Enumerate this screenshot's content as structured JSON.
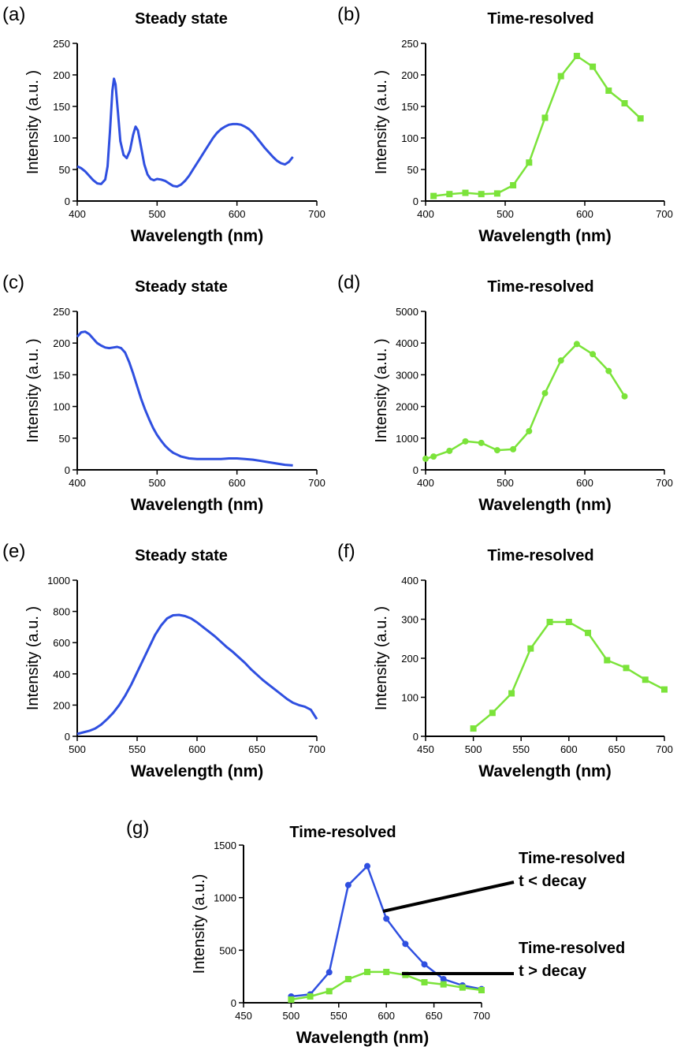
{
  "colors": {
    "blue": "#2f4fe0",
    "green": "#7be33a",
    "axis": "#000000"
  },
  "annotations": {
    "upper_line1": "Time-resolved",
    "upper_line2": "t < decay",
    "lower_line1": "Time-resolved",
    "lower_line2": "t > decay"
  },
  "chart_data": [
    {
      "panel": "(a)",
      "type": "line",
      "title": "Steady state",
      "xlabel": "Wavelength (nm)",
      "ylabel": "Intensity (a.u. )",
      "xlim": [
        400,
        700
      ],
      "ylim": [
        0,
        250
      ],
      "xticks": [
        400,
        500,
        600,
        700
      ],
      "yticks": [
        0,
        50,
        100,
        150,
        200,
        250
      ],
      "series": [
        {
          "color": "blue",
          "markers": "none",
          "x": [
            400,
            405,
            410,
            415,
            420,
            425,
            430,
            435,
            438,
            441,
            444,
            446,
            448,
            451,
            454,
            458,
            462,
            466,
            470,
            473,
            476,
            480,
            484,
            488,
            492,
            496,
            500,
            505,
            510,
            515,
            520,
            525,
            530,
            535,
            540,
            545,
            550,
            555,
            560,
            565,
            570,
            575,
            580,
            585,
            590,
            595,
            600,
            605,
            610,
            615,
            620,
            625,
            630,
            635,
            640,
            645,
            650,
            655,
            660,
            665,
            670
          ],
          "y": [
            55,
            52,
            47,
            40,
            33,
            28,
            27,
            34,
            55,
            110,
            175,
            194,
            185,
            140,
            95,
            73,
            68,
            80,
            105,
            118,
            112,
            85,
            58,
            42,
            35,
            33,
            35,
            34,
            32,
            28,
            24,
            23,
            26,
            32,
            40,
            50,
            60,
            70,
            80,
            90,
            100,
            108,
            114,
            118,
            121,
            122,
            122,
            121,
            118,
            114,
            108,
            100,
            92,
            84,
            77,
            70,
            64,
            60,
            58,
            62,
            70
          ]
        }
      ]
    },
    {
      "panel": "(b)",
      "type": "line",
      "title": "Time-resolved",
      "xlabel": "Wavelength (nm)",
      "ylabel": "Intensity (a.u. )",
      "xlim": [
        400,
        700
      ],
      "ylim": [
        0,
        250
      ],
      "xticks": [
        400,
        500,
        600,
        700
      ],
      "yticks": [
        0,
        50,
        100,
        150,
        200,
        250
      ],
      "series": [
        {
          "color": "green",
          "markers": "square",
          "x": [
            410,
            430,
            450,
            470,
            490,
            510,
            530,
            550,
            570,
            590,
            610,
            630,
            650,
            670
          ],
          "y": [
            8,
            11,
            13,
            11,
            12,
            25,
            61,
            132,
            198,
            230,
            213,
            175,
            155,
            131
          ]
        }
      ]
    },
    {
      "panel": "(c)",
      "type": "line",
      "title": "Steady state",
      "xlabel": "Wavelength (nm)",
      "ylabel": "Intensity (a.u. )",
      "xlim": [
        400,
        700
      ],
      "ylim": [
        0,
        250
      ],
      "xticks": [
        400,
        500,
        600,
        700
      ],
      "yticks": [
        0,
        50,
        100,
        150,
        200,
        250
      ],
      "series": [
        {
          "color": "blue",
          "markers": "none",
          "x": [
            400,
            405,
            410,
            415,
            420,
            425,
            430,
            435,
            440,
            445,
            450,
            455,
            460,
            465,
            470,
            475,
            480,
            485,
            490,
            495,
            500,
            505,
            510,
            515,
            520,
            525,
            530,
            540,
            550,
            560,
            570,
            580,
            590,
            600,
            610,
            620,
            630,
            640,
            650,
            660,
            670
          ],
          "y": [
            210,
            217,
            218,
            214,
            207,
            200,
            196,
            193,
            192,
            193,
            194,
            192,
            185,
            170,
            152,
            132,
            112,
            95,
            80,
            66,
            55,
            46,
            38,
            32,
            27,
            24,
            21,
            18,
            17,
            17,
            17,
            17,
            18,
            18,
            17,
            16,
            14,
            12,
            10,
            8,
            7
          ]
        }
      ]
    },
    {
      "panel": "(d)",
      "type": "line",
      "title": "Time-resolved",
      "xlabel": "Wavelength (nm)",
      "ylabel": "Intensity (a.u. )",
      "xlim": [
        400,
        700
      ],
      "ylim": [
        0,
        5000
      ],
      "xticks": [
        400,
        500,
        600,
        700
      ],
      "yticks": [
        0,
        1000,
        2000,
        3000,
        4000,
        5000
      ],
      "series": [
        {
          "color": "green",
          "markers": "circle",
          "x": [
            400,
            410,
            430,
            450,
            470,
            490,
            510,
            530,
            550,
            570,
            590,
            610,
            630,
            650
          ],
          "y": [
            350,
            420,
            600,
            900,
            850,
            620,
            650,
            1220,
            2420,
            3450,
            3970,
            3650,
            3120,
            2320
          ]
        }
      ]
    },
    {
      "panel": "(e)",
      "type": "line",
      "title": "Steady state",
      "xlabel": "Wavelength (nm)",
      "ylabel": "Intensity (a.u. )",
      "xlim": [
        500,
        700
      ],
      "ylim": [
        0,
        1000
      ],
      "xticks": [
        500,
        550,
        600,
        650,
        700
      ],
      "yticks": [
        0,
        200,
        400,
        600,
        800,
        1000
      ],
      "series": [
        {
          "color": "blue",
          "markers": "none",
          "x": [
            500,
            505,
            510,
            515,
            520,
            525,
            530,
            535,
            540,
            545,
            550,
            555,
            560,
            565,
            570,
            575,
            580,
            585,
            590,
            595,
            600,
            605,
            610,
            615,
            620,
            625,
            630,
            635,
            640,
            645,
            650,
            655,
            660,
            665,
            670,
            675,
            680,
            685,
            690,
            695,
            700
          ],
          "y": [
            15,
            25,
            35,
            50,
            75,
            110,
            150,
            200,
            260,
            330,
            410,
            490,
            570,
            650,
            710,
            755,
            775,
            778,
            770,
            755,
            730,
            700,
            670,
            640,
            605,
            570,
            540,
            505,
            470,
            430,
            395,
            360,
            330,
            300,
            270,
            240,
            215,
            200,
            190,
            170,
            110
          ]
        }
      ]
    },
    {
      "panel": "(f)",
      "type": "line",
      "title": "Time-resolved",
      "xlabel": "Wavelength (nm)",
      "ylabel": "Intensity (a.u. )",
      "xlim": [
        450,
        700
      ],
      "ylim": [
        0,
        400
      ],
      "xticks": [
        450,
        500,
        550,
        600,
        650,
        700
      ],
      "yticks": [
        0,
        100,
        200,
        300,
        400
      ],
      "series": [
        {
          "color": "green",
          "markers": "square",
          "x": [
            500,
            520,
            540,
            560,
            580,
            600,
            620,
            640,
            660,
            680,
            700
          ],
          "y": [
            20,
            60,
            110,
            225,
            293,
            293,
            265,
            195,
            175,
            145,
            120
          ]
        }
      ]
    },
    {
      "panel": "(g)",
      "type": "line",
      "title": "Time-resolved",
      "xlabel": "Wavelength (nm)",
      "ylabel": "Intensity (a.u.)",
      "xlim": [
        450,
        700
      ],
      "ylim": [
        0,
        1500
      ],
      "xticks": [
        450,
        500,
        550,
        600,
        650,
        700
      ],
      "yticks": [
        0,
        500,
        1000,
        1500
      ],
      "series": [
        {
          "color": "blue",
          "markers": "circle",
          "x": [
            500,
            520,
            540,
            560,
            580,
            600,
            620,
            640,
            660,
            680,
            700
          ],
          "y": [
            60,
            80,
            290,
            1120,
            1300,
            800,
            560,
            365,
            225,
            165,
            130
          ]
        },
        {
          "color": "green",
          "markers": "square",
          "x": [
            500,
            520,
            540,
            560,
            580,
            600,
            620,
            640,
            660,
            680,
            700
          ],
          "y": [
            30,
            60,
            110,
            225,
            293,
            293,
            265,
            195,
            175,
            145,
            120
          ]
        }
      ]
    }
  ]
}
